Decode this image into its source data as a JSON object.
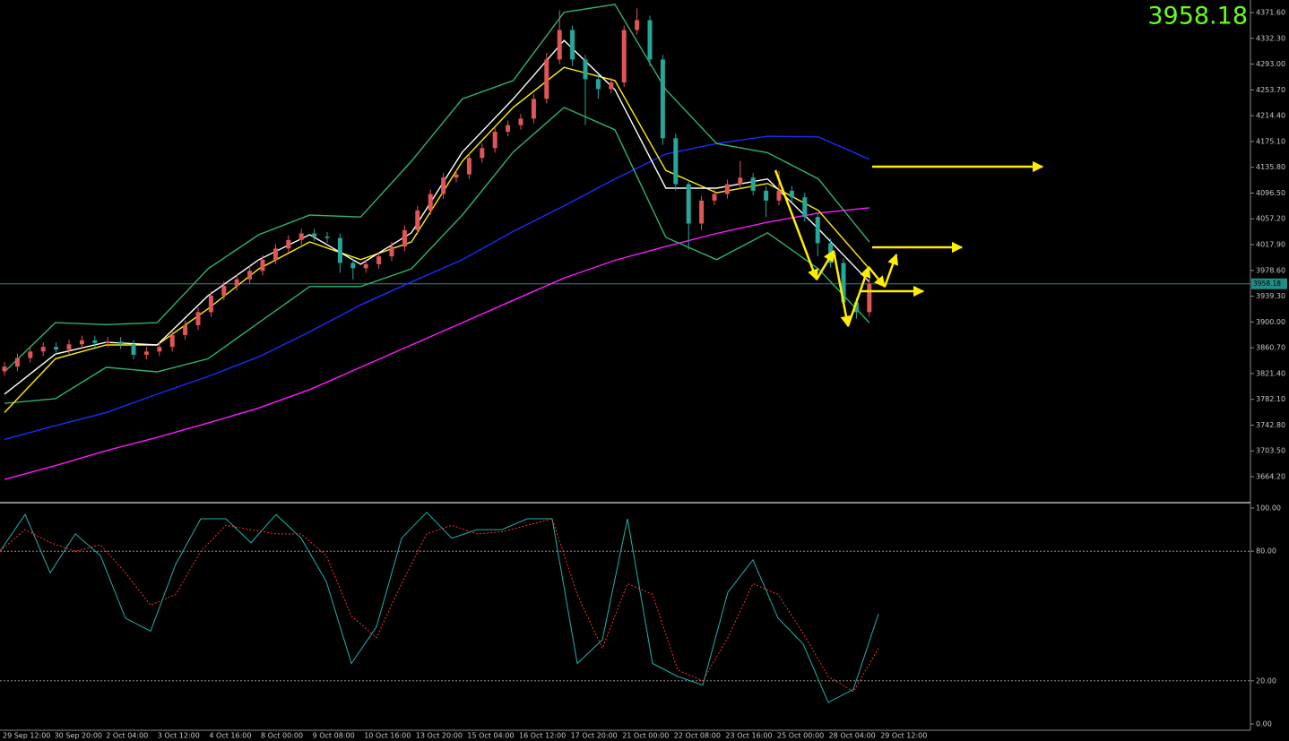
{
  "chart_data": [
    {
      "type": "candlestick",
      "up_color": "#e05555",
      "down_color": "#26a69a",
      "ylim": [
        3626.0,
        4390.7
      ],
      "yticks": [
        {
          "value": 4371.6,
          "label": "4371.60"
        },
        {
          "value": 4332.3,
          "label": "4332.30"
        },
        {
          "value": 4293.0,
          "label": "4293.00"
        },
        {
          "value": 4253.7,
          "label": "4253.70"
        },
        {
          "value": 4214.4,
          "label": "4214.40"
        },
        {
          "value": 4175.1,
          "label": "4175.10"
        },
        {
          "value": 4135.8,
          "label": "4135.80"
        },
        {
          "value": 4096.5,
          "label": "4096.50"
        },
        {
          "value": 4057.2,
          "label": "4057.20"
        },
        {
          "value": 4017.9,
          "label": "4017.90"
        },
        {
          "value": 3978.6,
          "label": "3978.60"
        },
        {
          "value": 3939.3,
          "label": "3939.30"
        },
        {
          "value": 3900.0,
          "label": "3900.00"
        },
        {
          "value": 3860.7,
          "label": "3860.70"
        },
        {
          "value": 3821.4,
          "label": "3821.40"
        },
        {
          "value": 3782.1,
          "label": "3782.10"
        },
        {
          "value": 3742.8,
          "label": "3742.80"
        },
        {
          "value": 3703.5,
          "label": "3703.50"
        },
        {
          "value": 3664.2,
          "label": "3664.20"
        }
      ],
      "x_labels": [
        "29 Sep 12:00",
        "30 Sep 20:00",
        "2 Oct 04:00",
        "3 Oct 12:00",
        "4 Oct 16:00",
        "8 Oct 00:00",
        "9 Oct 08:00",
        "10 Oct 16:00",
        "13 Oct 20:00",
        "15 Oct 04:00",
        "16 Oct 12:00",
        "17 Oct 20:00",
        "21 Oct 00:00",
        "22 Oct 08:00",
        "23 Oct 16:00",
        "25 Oct 00:00",
        "28 Oct 04:00",
        "29 Oct 12:00"
      ],
      "current_price": 3958.18,
      "current_price_color": "#1f8f85",
      "open": [
        3825,
        3832,
        3845,
        3855,
        3862,
        3858,
        3866,
        3872,
        3868,
        3870,
        3866,
        3850,
        3855,
        3862,
        3880,
        3895,
        3915,
        3940,
        3955,
        3965,
        3978,
        3995,
        4012,
        4025,
        4035,
        4030,
        4028,
        3990,
        3982,
        3988,
        4000,
        4015,
        4040,
        4070,
        4095,
        4120,
        4125,
        4150,
        4165,
        4190,
        4200,
        4210,
        4240,
        4300,
        4345,
        4300,
        4270,
        4255,
        4265,
        4345,
        4360,
        4300,
        4180,
        4110,
        4050,
        4085,
        4095,
        4110,
        4120,
        4100,
        4085,
        4100,
        4090,
        4060,
        4020,
        3990,
        3930,
        3915
      ],
      "high": [
        3839,
        3852,
        3862,
        3869,
        3869,
        3873,
        3879,
        3879,
        3877,
        3877,
        3873,
        3862,
        3869,
        3887,
        3902,
        3922,
        3947,
        3962,
        3972,
        3985,
        4002,
        4019,
        4032,
        4042,
        4042,
        4037,
        4035,
        3997,
        3995,
        4007,
        4022,
        4047,
        4077,
        4102,
        4127,
        4132,
        4157,
        4172,
        4197,
        4207,
        4217,
        4247,
        4310,
        4375,
        4352,
        4307,
        4277,
        4272,
        4352,
        4378,
        4367,
        4307,
        4187,
        4117,
        4092,
        4102,
        4117,
        4145,
        4127,
        4107,
        4130,
        4107,
        4097,
        4067,
        4027,
        3997,
        3937,
        3968
      ],
      "low": [
        3818,
        3825,
        3838,
        3848,
        3851,
        3851,
        3859,
        3861,
        3861,
        3859,
        3843,
        3843,
        3848,
        3855,
        3873,
        3888,
        3908,
        3933,
        3948,
        3958,
        3971,
        3988,
        4005,
        4018,
        4023,
        4021,
        3975,
        3965,
        3975,
        3981,
        3993,
        4008,
        4033,
        4063,
        4088,
        4113,
        4118,
        4143,
        4158,
        4183,
        4193,
        4203,
        4233,
        4293,
        4290,
        4200,
        4240,
        4248,
        4258,
        4338,
        4290,
        4170,
        4100,
        4010,
        4040,
        4078,
        4088,
        4103,
        4093,
        4060,
        4078,
        4083,
        4053,
        4000,
        3983,
        3923,
        3905,
        3908
      ],
      "close": [
        3832,
        3845,
        3855,
        3862,
        3858,
        3866,
        3872,
        3868,
        3870,
        3866,
        3850,
        3855,
        3862,
        3880,
        3895,
        3915,
        3940,
        3955,
        3965,
        3978,
        3995,
        4012,
        4025,
        4035,
        4030,
        4028,
        3990,
        3982,
        3988,
        4000,
        4015,
        4040,
        4070,
        4095,
        4120,
        4125,
        4150,
        4165,
        4190,
        4200,
        4210,
        4240,
        4300,
        4345,
        4300,
        4270,
        4255,
        4265,
        4345,
        4360,
        4300,
        4180,
        4110,
        4050,
        4085,
        4095,
        4110,
        4120,
        4100,
        4085,
        4100,
        4090,
        4060,
        4020,
        3990,
        3930,
        3915,
        3958.18
      ],
      "series": [
        {
          "color": "#ff1aff",
          "values": [
            3660,
            3681,
            3704,
            3724,
            3746,
            3769,
            3797,
            3831,
            3865,
            3899,
            3933,
            3967,
            3994,
            4015,
            4035,
            4052,
            4066,
            4074
          ]
        },
        {
          "color": "#1a2cff",
          "values": [
            3721,
            3742,
            3762,
            3790,
            3817,
            3847,
            3885,
            3926,
            3961,
            3995,
            4038,
            4077,
            4118,
            4156,
            4172,
            4183,
            4182,
            4148
          ]
        },
        {
          "color": "#2fb36b",
          "values": [
            3824,
            3899,
            3896,
            3899,
            3981,
            4033,
            4063,
            4060,
            4145,
            4240,
            4268,
            4372,
            4384,
            4254,
            4172,
            4158,
            4118,
            4022
          ]
        },
        {
          "color": "#2fb36b",
          "values": [
            3776,
            3783,
            3831,
            3824,
            3844,
            3899,
            3954,
            3954,
            3981,
            4063,
            4159,
            4227,
            4193,
            4029,
            3995,
            4036,
            3981,
            3899
          ]
        },
        {
          "color": "#ffee00",
          "values": [
            3762,
            3844,
            3865,
            3865,
            3920,
            3981,
            4022,
            3995,
            4022,
            4145,
            4227,
            4288,
            4268,
            4131,
            4097,
            4111,
            4070,
            3981
          ]
        },
        {
          "color": "#ffffff",
          "values": [
            3790,
            3851,
            3869,
            3865,
            3940,
            3995,
            4033,
            3988,
            4036,
            4159,
            4240,
            4329,
            4254,
            4104,
            4104,
            4118,
            4042,
            3961
          ]
        }
      ]
    },
    {
      "type": "line",
      "ylim": [
        0,
        100
      ],
      "yticks": [
        {
          "value": 100,
          "label": "100.00"
        },
        {
          "value": 80,
          "label": "80.00"
        },
        {
          "value": 20,
          "label": "20.00"
        },
        {
          "value": 0,
          "label": "0.00"
        }
      ],
      "series": [
        {
          "color": "#20b2aa",
          "style": "solid",
          "values": [
            80,
            97,
            70,
            88,
            78,
            49,
            43,
            74,
            95,
            95,
            84,
            97,
            86,
            66,
            28,
            45,
            86,
            98,
            86,
            90,
            90,
            95,
            95,
            28,
            39,
            95,
            28,
            22,
            18,
            61,
            76,
            49,
            37,
            10,
            16,
            51
          ]
        },
        {
          "color": "#ff3030",
          "style": "dashed",
          "values": [
            80,
            90,
            84,
            80,
            83,
            70,
            55,
            60,
            80,
            92,
            90,
            88,
            88,
            78,
            50,
            40,
            65,
            88,
            92,
            88,
            89,
            92,
            95,
            60,
            35,
            65,
            60,
            25,
            20,
            40,
            65,
            60,
            42,
            22,
            15,
            35
          ]
        }
      ]
    }
  ]
}
